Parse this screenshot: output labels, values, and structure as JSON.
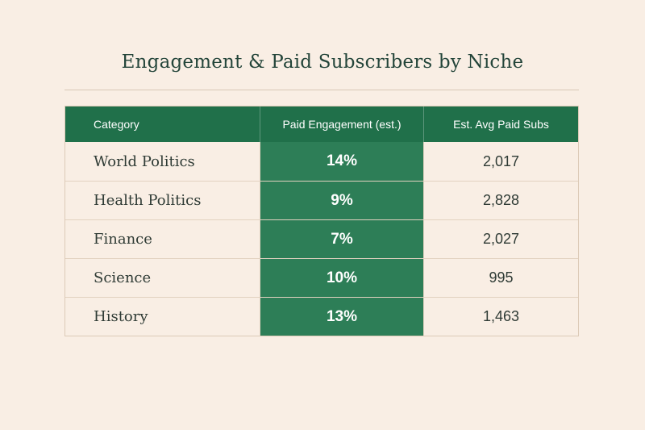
{
  "title": "Engagement & Paid Subscribers by Niche",
  "colors": {
    "background": "#f9eee4",
    "header_bg": "#20704a",
    "highlight_column_bg": "#2d7e57",
    "title_text": "#24453a"
  },
  "chart_data": {
    "type": "table",
    "title": "Engagement & Paid Subscribers by Niche",
    "columns": [
      "Category",
      "Paid Engagement (est.)",
      "Est. Avg Paid Subs"
    ],
    "rows": [
      {
        "category": "World Politics",
        "engagement": "14%",
        "avg_subs": "2,017"
      },
      {
        "category": "Health Politics",
        "engagement": "9%",
        "avg_subs": "2,828"
      },
      {
        "category": "Finance",
        "engagement": "7%",
        "avg_subs": "2,027"
      },
      {
        "category": "Science",
        "engagement": "10%",
        "avg_subs": "995"
      },
      {
        "category": "History",
        "engagement": "13%",
        "avg_subs": "1,463"
      }
    ]
  }
}
